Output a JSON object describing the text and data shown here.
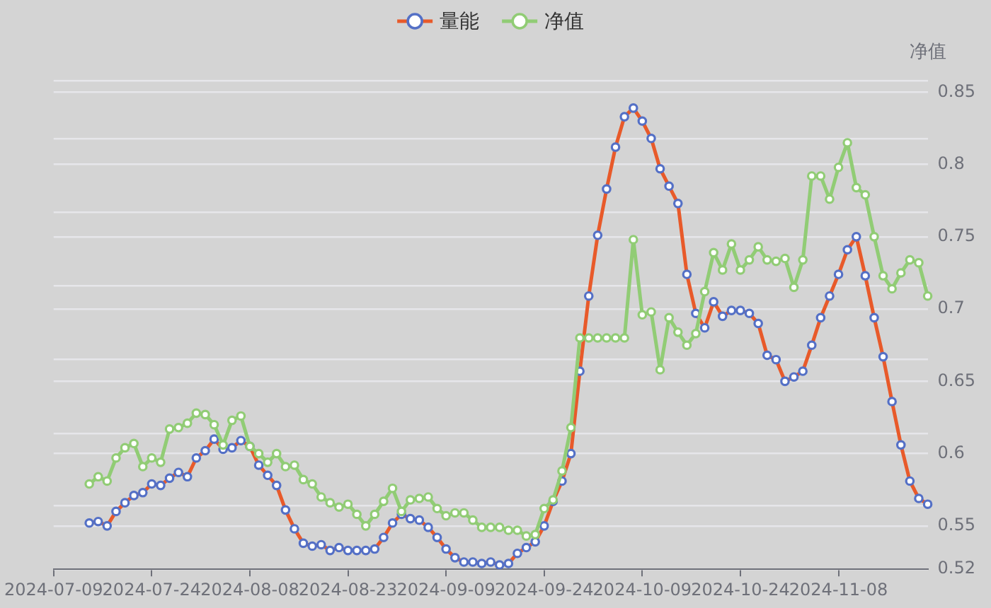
{
  "chart_data": {
    "type": "line",
    "ylabel": "净值",
    "legend": "top",
    "grid": "y",
    "marker": "circle",
    "categories": [
      "2024-07-09",
      null,
      null,
      null,
      null,
      null,
      null,
      null,
      null,
      null,
      null,
      "2024-07-24",
      null,
      null,
      null,
      null,
      null,
      null,
      null,
      null,
      null,
      null,
      "2024-08-08",
      null,
      null,
      null,
      null,
      null,
      null,
      null,
      null,
      null,
      null,
      "2024-08-23",
      null,
      null,
      null,
      null,
      null,
      null,
      null,
      null,
      null,
      null,
      "2024-09-09",
      null,
      null,
      null,
      null,
      null,
      null,
      null,
      null,
      null,
      null,
      "2024-09-24",
      null,
      null,
      null,
      null,
      null,
      null,
      null,
      null,
      null,
      null,
      "2024-10-09",
      null,
      null,
      null,
      null,
      null,
      null,
      null,
      null,
      null,
      null,
      "2024-10-24",
      null,
      null,
      null,
      null,
      null,
      null,
      null,
      null,
      null,
      null,
      "2024-11-08",
      null,
      null,
      null,
      null,
      null,
      null,
      null,
      null,
      null,
      null
    ],
    "ylim": [
      0.52,
      0.858
    ],
    "yticks": [
      0.52,
      0.55,
      {
        "value": 0.564,
        "label": null
      },
      0.6,
      {
        "value": 0.614,
        "label": null
      },
      0.65,
      {
        "value": 0.665,
        "label": null
      },
      0.7,
      {
        "value": 0.716,
        "label": null
      },
      0.75,
      {
        "value": 0.767,
        "label": null
      },
      0.8,
      {
        "value": 0.818,
        "label": null
      },
      0.85,
      {
        "value": 0.858,
        "label": null
      }
    ],
    "series": [
      {
        "name": "量能",
        "color": "#e85a2a",
        "values": [
          null,
          null,
          null,
          null,
          0.552,
          0.553,
          0.55,
          0.56,
          0.566,
          0.571,
          0.573,
          0.579,
          0.578,
          0.583,
          0.587,
          0.584,
          0.597,
          0.602,
          0.61,
          0.603,
          0.604,
          0.609,
          0.605,
          0.592,
          0.585,
          0.578,
          0.561,
          0.548,
          0.538,
          0.536,
          0.537,
          0.533,
          0.535,
          0.533,
          0.533,
          0.533,
          0.534,
          0.542,
          0.552,
          0.558,
          0.555,
          0.554,
          0.549,
          0.542,
          0.534,
          0.528,
          0.525,
          0.525,
          0.524,
          0.525,
          0.523,
          0.524,
          0.531,
          0.535,
          0.539,
          0.55,
          0.567,
          0.581,
          0.6,
          0.657,
          0.709,
          0.751,
          0.783,
          0.812,
          0.833,
          0.839,
          0.83,
          0.818,
          0.797,
          0.785,
          0.773,
          0.724,
          0.697,
          0.687,
          0.705,
          0.695,
          0.699,
          0.699,
          0.697,
          0.69,
          0.668,
          0.665,
          0.65,
          0.653,
          0.657,
          0.675,
          0.694,
          0.709,
          0.724,
          0.741,
          0.75,
          0.723,
          0.694,
          0.667,
          0.636,
          0.606,
          0.581,
          0.569,
          0.565
        ],
        "colors": [
          null,
          null,
          null,
          null,
          "#5470c6",
          "#5470c6",
          "#5470c6",
          "#5470c6",
          "#5470c6",
          "#5470c6",
          "#5470c6",
          "#5470c6",
          "#5470c6",
          "#5470c6",
          "#5470c6",
          "#5470c6",
          "#5470c6",
          "#5470c6",
          "#5470c6",
          "#5470c6",
          "#5470c6",
          "#5470c6",
          "#5470c6",
          "#5470c6",
          "#5470c6",
          "#5470c6",
          "#5470c6",
          "#5470c6",
          "#5470c6",
          "#5470c6",
          "#5470c6",
          "#5470c6",
          "#5470c6",
          "#5470c6",
          "#5470c6",
          "#5470c6",
          "#5470c6",
          "#5470c6",
          "#5470c6",
          "#5470c6",
          "#5470c6",
          "#5470c6",
          "#5470c6",
          "#5470c6",
          "#5470c6",
          "#5470c6",
          "#5470c6",
          "#5470c6",
          "#5470c6",
          "#5470c6",
          "#5470c6",
          "#5470c6",
          "#5470c6",
          "#5470c6",
          "#5470c6",
          "#5470c6",
          "#5470c6",
          "#5470c6",
          "#5470c6",
          "#5470c6",
          "#5470c6",
          "#5470c6",
          "#5470c6",
          "#5470c6",
          "#5470c6",
          "#5470c6",
          "#5470c6",
          "#5470c6",
          "#5470c6",
          "#5470c6",
          "#5470c6",
          "#5470c6",
          "#5470c6",
          "#5470c6",
          "#5470c6",
          "#5470c6",
          "#5470c6",
          "#5470c6",
          "#5470c6",
          "#5470c6",
          "#5470c6",
          "#5470c6",
          "#5470c6",
          "#5470c6",
          "#5470c6",
          "#5470c6",
          "#5470c6",
          "#5470c6",
          "#5470c6",
          "#5470c6",
          "#5470c6",
          "#5470c6",
          "#5470c6",
          "#5470c6",
          "#5470c6",
          "#5470c6",
          "#5470c6",
          "#5470c6",
          "#5470c6"
        ]
      },
      {
        "name": "净值",
        "color": "#91cc75",
        "values": [
          null,
          null,
          null,
          null,
          0.579,
          0.584,
          0.581,
          0.597,
          0.604,
          0.607,
          0.591,
          0.597,
          0.594,
          0.617,
          0.618,
          0.621,
          0.628,
          0.627,
          0.62,
          0.606,
          0.623,
          0.626,
          0.605,
          0.6,
          0.594,
          0.6,
          0.591,
          0.592,
          0.582,
          0.579,
          0.57,
          0.566,
          0.563,
          0.565,
          0.558,
          0.55,
          0.558,
          0.567,
          0.576,
          0.56,
          0.568,
          0.569,
          0.57,
          0.562,
          0.557,
          0.559,
          0.559,
          0.554,
          0.549,
          0.549,
          0.549,
          0.547,
          0.547,
          0.543,
          0.544,
          0.562,
          0.568,
          0.588,
          0.618,
          0.68,
          0.68,
          0.68,
          0.68,
          0.68,
          0.68,
          0.748,
          0.696,
          0.698,
          0.658,
          0.694,
          0.684,
          0.675,
          0.683,
          0.712,
          0.739,
          0.727,
          0.745,
          0.727,
          0.734,
          0.743,
          0.734,
          0.733,
          0.735,
          0.715,
          0.734,
          0.792,
          0.792,
          0.776,
          0.798,
          0.815,
          0.784,
          0.779,
          0.75,
          0.723,
          0.714,
          0.725,
          0.734,
          0.732,
          0.709
        ]
      }
    ]
  }
}
